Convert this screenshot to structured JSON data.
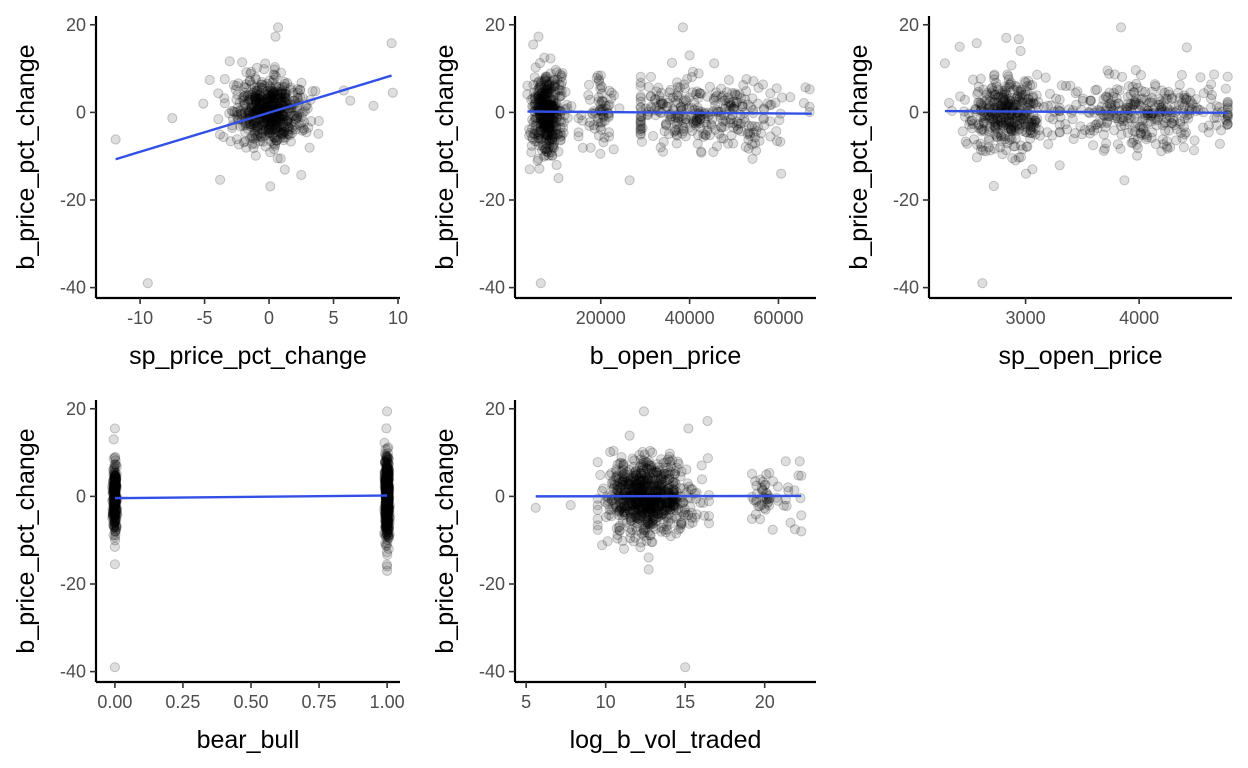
{
  "chart_data": [
    {
      "type": "scatter",
      "id": "sp_price_pct_change",
      "xlabel": "sp_price_pct_change",
      "ylabel": "b_price_pct_change",
      "xlim": [
        -12.8,
        10
      ],
      "ylim": [
        -41,
        22
      ],
      "xticks": [
        -10,
        -5,
        0,
        5,
        10
      ],
      "xtick_labels": [
        "-10",
        "-5",
        "0",
        "5",
        "10"
      ],
      "yticks": [
        -40,
        -20,
        0,
        20
      ],
      "ytick_labels": [
        "-40",
        "-20",
        "0",
        "20"
      ],
      "fit_line": {
        "x": [
          -11.9,
          9.5
        ],
        "y": [
          -10.7,
          8.4
        ],
        "color": "#3250e6"
      },
      "outliers": [
        [
          -9.4,
          -39.0
        ],
        [
          9.5,
          15.8
        ],
        [
          9.6,
          4.5
        ],
        [
          -11.9,
          -6.2
        ],
        [
          0.7,
          19.4
        ],
        [
          -3.8,
          -15.4
        ],
        [
          -7.5,
          -1.3
        ],
        [
          -5.1,
          2.0
        ],
        [
          8.1,
          1.5
        ],
        [
          6.3,
          2.7
        ],
        [
          5.8,
          5.0
        ],
        [
          0.1,
          -16.9
        ],
        [
          2.5,
          -14.3
        ],
        [
          -4.6,
          7.4
        ],
        [
          0.5,
          17.3
        ]
      ],
      "clusters": [
        {
          "cx": 0,
          "sx": 1.3,
          "cy": 0,
          "sy": 3.6,
          "n": 600,
          "xmin": -4.6,
          "xmax": 5,
          "ymin": -17,
          "ymax": 17
        }
      ]
    },
    {
      "type": "scatter",
      "id": "b_open_price",
      "xlabel": "b_open_price",
      "ylabel": "b_price_pct_change",
      "xlim": [
        2500,
        68000
      ],
      "ylim": [
        -41,
        22
      ],
      "xticks": [
        20000,
        40000,
        60000
      ],
      "xtick_labels": [
        "20000",
        "40000",
        "60000"
      ],
      "yticks": [
        -40,
        -20,
        0,
        20
      ],
      "ytick_labels": [
        "-40",
        "-20",
        "0",
        "20"
      ],
      "fit_line": {
        "x": [
          3500,
          67500
        ],
        "y": [
          0.2,
          -0.3
        ],
        "color": "#3250e6"
      },
      "outliers": [
        [
          6500,
          -39.0
        ],
        [
          38500,
          19.4
        ],
        [
          6000,
          17.3
        ],
        [
          4800,
          15.5
        ],
        [
          40000,
          13.0
        ],
        [
          26500,
          -15.5
        ],
        [
          4000,
          -13.0
        ],
        [
          10500,
          -15.0
        ]
      ],
      "clusters": [
        {
          "cx": 8000,
          "sx": 1800,
          "cy": 0,
          "sy": 4.8,
          "n": 420,
          "xmin": 3500,
          "xmax": 14000,
          "ymin": -17,
          "ymax": 17
        },
        {
          "cx": 19500,
          "sx": 1800,
          "cy": 0,
          "sy": 3.5,
          "n": 70,
          "xmin": 15000,
          "xmax": 25000,
          "ymin": -12,
          "ymax": 12
        },
        {
          "cx": 43000,
          "sx": 9000,
          "cy": 0,
          "sy": 4.3,
          "n": 320,
          "xmin": 29000,
          "xmax": 67000,
          "ymin": -14,
          "ymax": 14
        }
      ]
    },
    {
      "type": "scatter",
      "id": "sp_open_price",
      "xlabel": "sp_open_price",
      "ylabel": "b_price_pct_change",
      "xlim": [
        2220,
        4800
      ],
      "ylim": [
        -41,
        22
      ],
      "xticks": [
        3000,
        4000
      ],
      "xtick_labels": [
        "3000",
        "4000"
      ],
      "yticks": [
        -40,
        -20,
        0,
        20
      ],
      "ytick_labels": [
        "-40",
        "-20",
        "0",
        "20"
      ],
      "fit_line": {
        "x": [
          2290,
          4780
        ],
        "y": [
          0.3,
          -0.1
        ],
        "color": "#3250e6"
      },
      "outliers": [
        [
          2620,
          -39.0
        ],
        [
          3840,
          19.4
        ],
        [
          2290,
          11.2
        ],
        [
          2420,
          15.0
        ],
        [
          2570,
          15.8
        ],
        [
          2830,
          17.0
        ],
        [
          2940,
          16.7
        ],
        [
          4420,
          14.8
        ],
        [
          2720,
          -16.8
        ],
        [
          3870,
          -15.5
        ],
        [
          3060,
          -13.0
        ]
      ],
      "clusters": [
        {
          "cx": 2830,
          "sx": 180,
          "cy": 0,
          "sy": 4.2,
          "n": 380,
          "xmin": 2300,
          "xmax": 3300,
          "ymin": -14,
          "ymax": 14
        },
        {
          "cx": 4050,
          "sx": 380,
          "cy": 0,
          "sy": 4.0,
          "n": 330,
          "xmin": 3300,
          "xmax": 4780,
          "ymin": -13,
          "ymax": 13
        }
      ]
    },
    {
      "type": "scatter",
      "id": "bear_bull",
      "xlabel": "bear_bull",
      "ylabel": "b_price_pct_change",
      "xlim": [
        -0.04,
        1.04
      ],
      "ylim": [
        -41,
        22
      ],
      "xticks": [
        0,
        0.25,
        0.5,
        0.75,
        1
      ],
      "xtick_labels": [
        "0.00",
        "0.25",
        "0.50",
        "0.75",
        "1.00"
      ],
      "yticks": [
        -40,
        -20,
        0,
        20
      ],
      "ytick_labels": [
        "-40",
        "-20",
        "0",
        "20"
      ],
      "fit_line": {
        "x": [
          0,
          1
        ],
        "y": [
          -0.4,
          0.2
        ],
        "color": "#3250e6"
      },
      "outliers": [
        [
          0,
          -39.0
        ],
        [
          0,
          15.5
        ],
        [
          0,
          -15.5
        ],
        [
          1,
          19.4
        ],
        [
          1,
          -17.0
        ],
        [
          1,
          -16.0
        ]
      ],
      "clusters": [
        {
          "cx": 0,
          "sx": 0.004,
          "cy": 0,
          "sy": 4.0,
          "n": 260,
          "xmin": -0.01,
          "xmax": 0.01,
          "ymin": -12,
          "ymax": 13
        },
        {
          "cx": 1,
          "sx": 0.004,
          "cy": 0,
          "sy": 4.6,
          "n": 560,
          "xmin": 0.99,
          "xmax": 1.01,
          "ymin": -16,
          "ymax": 18
        }
      ]
    },
    {
      "type": "scatter",
      "id": "log_b_vol_traded",
      "xlabel": "log_b_vol_traded",
      "ylabel": "b_price_pct_change",
      "xlim": [
        4.8,
        23.1
      ],
      "ylim": [
        -41,
        22
      ],
      "xticks": [
        5,
        10,
        15,
        20
      ],
      "xtick_labels": [
        "5",
        "10",
        "15",
        "20"
      ],
      "yticks": [
        -40,
        -20,
        0,
        20
      ],
      "ytick_labels": [
        "-40",
        "-20",
        "0",
        "20"
      ],
      "fit_line": {
        "x": [
          5.6,
          22.3
        ],
        "y": [
          0.0,
          0.1
        ],
        "color": "#3250e6"
      },
      "outliers": [
        [
          15.0,
          -39.0
        ],
        [
          5.6,
          -2.6
        ],
        [
          7.8,
          -2.0
        ],
        [
          12.4,
          19.4
        ],
        [
          16.4,
          17.2
        ],
        [
          15.2,
          15.5
        ],
        [
          12.7,
          -16.7
        ],
        [
          22.2,
          8.0
        ],
        [
          22.3,
          4.7
        ],
        [
          21.9,
          -7.5
        ],
        [
          20.5,
          -7.6
        ],
        [
          20.1,
          5.0
        ],
        [
          16.5,
          -4.5
        ]
      ],
      "clusters": [
        {
          "cx": 12.6,
          "sx": 1.3,
          "cy": 0,
          "sy": 4.3,
          "n": 750,
          "xmin": 9.5,
          "xmax": 16.5,
          "ymin": -15,
          "ymax": 15
        },
        {
          "cx": 20.0,
          "sx": 0.5,
          "cy": 0,
          "sy": 2.5,
          "n": 40,
          "xmin": 19.2,
          "xmax": 21.0,
          "ymin": -8,
          "ymax": 6
        },
        {
          "cx": 21.8,
          "sx": 0.4,
          "cy": 0,
          "sy": 3.5,
          "n": 12,
          "xmin": 21.2,
          "xmax": 22.3,
          "ymin": -8,
          "ymax": 8
        }
      ]
    }
  ]
}
